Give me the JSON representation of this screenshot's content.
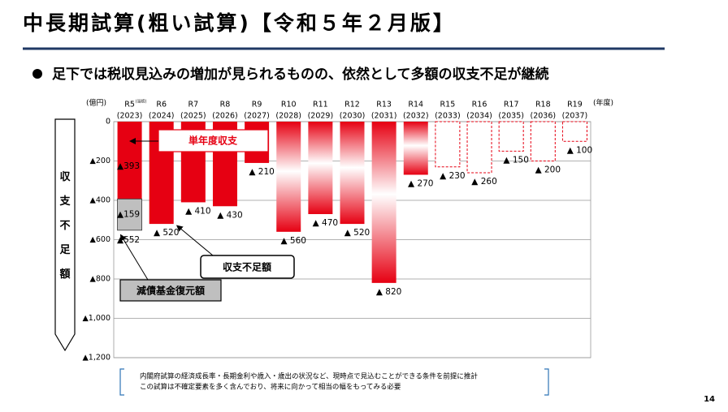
{
  "title": "中長期試算(粗い試算)【令和５年２月版】",
  "subtitle": "足下では税収見込みの増加が見られるものの、依然として多額の収支不足が継続",
  "page_number": "14",
  "footnote": [
    "内閣府試算の経済成長率・長期金利や歳入・歳出の状況など、現時点で見込むことができる条件を前提に推計",
    "この試算は不確定要素を多く含んでおり、将来に向かって相当の幅をもってみる必要"
  ],
  "chart_data": {
    "type": "bar",
    "y_unit": "(億円)",
    "x_unit": "(年度)",
    "side_label": "収支不足額",
    "annotation": "収支不足額",
    "categories": [
      "R5",
      "R6",
      "R7",
      "R8",
      "R9",
      "R10",
      "R11",
      "R12",
      "R13",
      "R14",
      "R15",
      "R16",
      "R17",
      "R18",
      "R19"
    ],
    "category_note": "(当初)",
    "years": [
      "(2023)",
      "(2024)",
      "(2025)",
      "(2026)",
      "(2027)",
      "(2028)",
      "(2029)",
      "(2030)",
      "(2031)",
      "(2032)",
      "(2033)",
      "(2034)",
      "(2035)",
      "(2036)",
      "(2037)"
    ],
    "styles": [
      "solid",
      "solid",
      "solid",
      "solid",
      "solid",
      "gradient",
      "gradient",
      "gradient",
      "gradient",
      "gradient",
      "dashed",
      "dashed",
      "dashed",
      "dashed",
      "dashed"
    ],
    "series": [
      {
        "name": "単年度収支",
        "color": "#e60012",
        "values": [
          -393,
          -520,
          -410,
          -430,
          -210,
          -560,
          -470,
          -520,
          -820,
          -270,
          -230,
          -260,
          -150,
          -200,
          -100
        ],
        "value_labels": [
          "▲393",
          "▲ 520",
          "▲ 410",
          "▲ 430",
          "▲ 210",
          "▲ 560",
          "▲ 470",
          "▲ 520",
          "▲ 820",
          "▲ 270",
          "▲ 230",
          "▲ 260",
          "▲ 150",
          "▲ 200",
          "▲ 100"
        ]
      },
      {
        "name": "減債基金復元額",
        "color": "#bfbfbf",
        "values": [
          -159,
          null,
          null,
          null,
          null,
          null,
          null,
          null,
          null,
          null,
          null,
          null,
          null,
          null,
          null
        ],
        "value_labels": [
          "▲159",
          null,
          null,
          null,
          null,
          null,
          null,
          null,
          null,
          null,
          null,
          null,
          null,
          null,
          null
        ]
      }
    ],
    "total": {
      "value": -552,
      "label": "▲552"
    },
    "ylim": [
      -1200,
      0
    ],
    "yticks": [
      0,
      {
        "value": -200,
        "label": "▲200"
      },
      {
        "value": -400,
        "label": "▲400"
      },
      {
        "value": -600,
        "label": "▲600"
      },
      {
        "value": -800,
        "label": "▲800"
      },
      {
        "value": -1000,
        "label": "▲1,000"
      },
      {
        "value": -1200,
        "label": "▲1,200"
      }
    ],
    "grid": true
  }
}
